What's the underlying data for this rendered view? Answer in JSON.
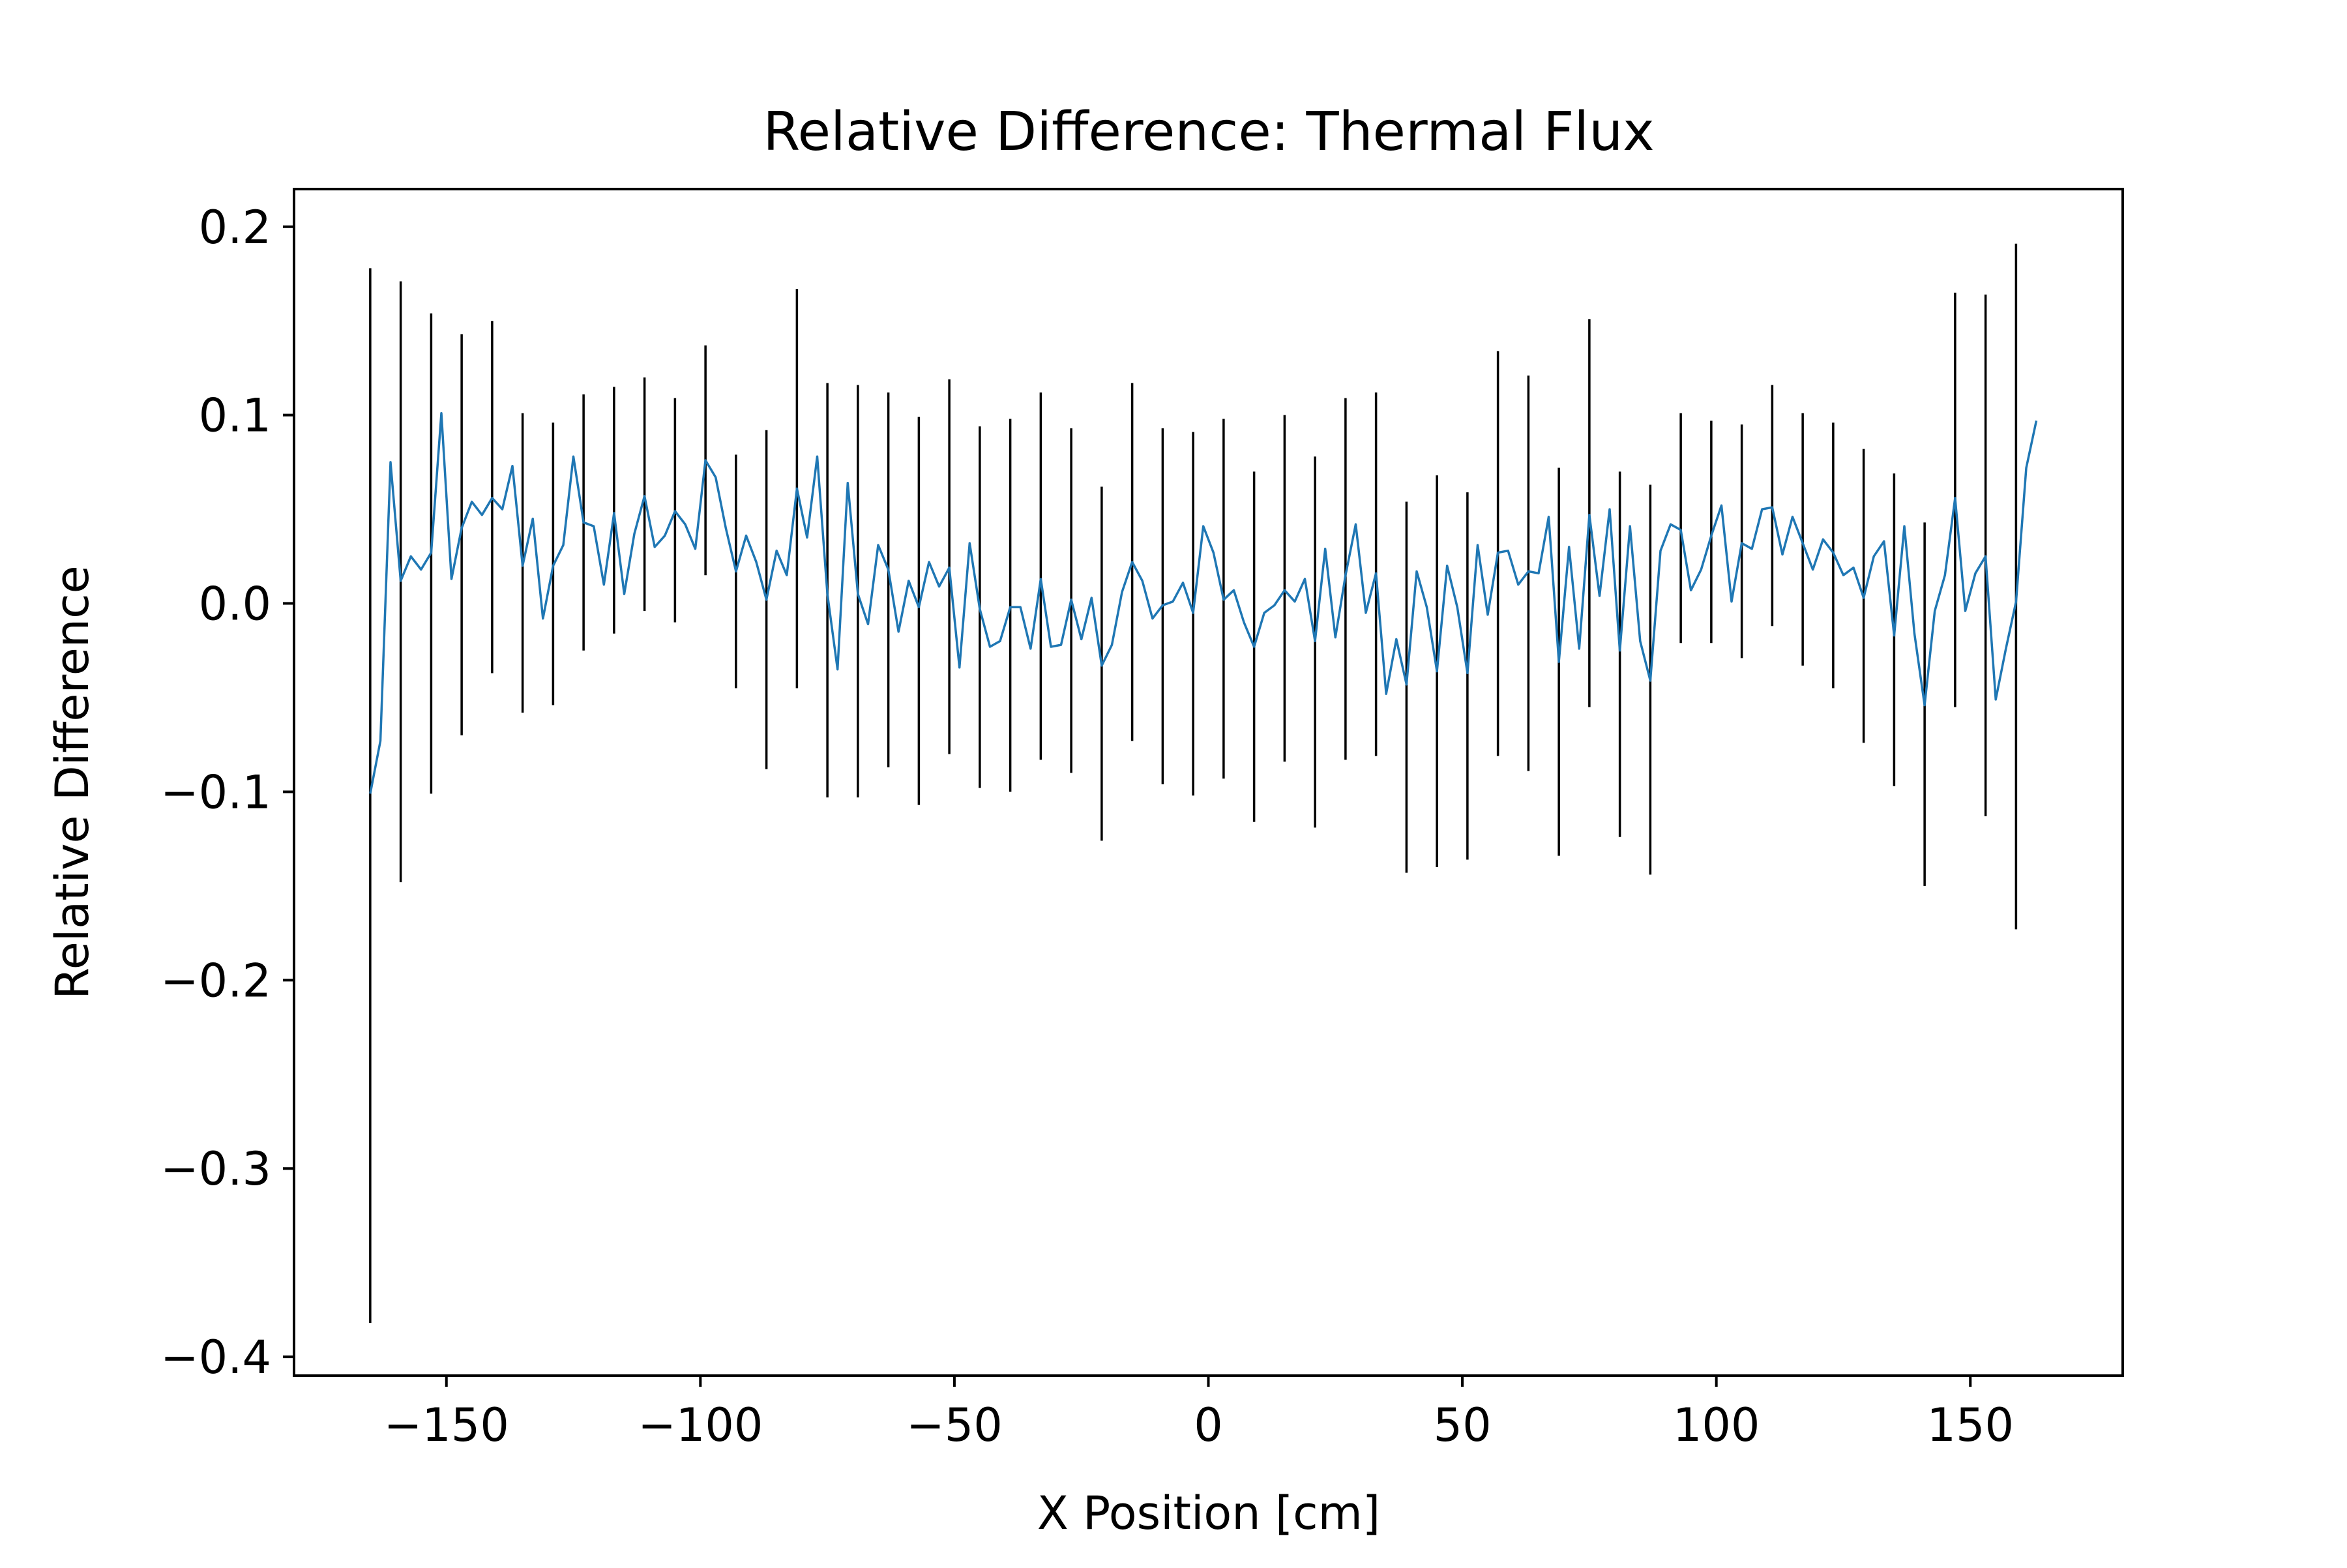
{
  "chart_data": {
    "type": "line",
    "title": "Relative Difference: Thermal Flux",
    "xlabel": "X Position [cm]",
    "ylabel": "Relative Difference",
    "xlim": [
      -180,
      180
    ],
    "ylim": [
      -0.41,
      0.22
    ],
    "xticks": [
      -150,
      -100,
      -50,
      0,
      50,
      100,
      150
    ],
    "xtick_labels": [
      "−150",
      "−100",
      "−50",
      "0",
      "50",
      "100",
      "150"
    ],
    "yticks": [
      0.2,
      0.1,
      0.0,
      -0.1,
      -0.2,
      -0.3,
      -0.4
    ],
    "ytick_labels": [
      "0.2",
      "0.1",
      "0.0",
      "−0.1",
      "−0.2",
      "−0.3",
      "−0.4"
    ],
    "grid": false,
    "line_color": "#1f77b4",
    "errorbar_color": "#000000",
    "series": [
      {
        "x": [
          -165,
          -163,
          -161,
          -159,
          -157,
          -155,
          -153,
          -151,
          -149,
          -147,
          -145,
          -143,
          -141,
          -139,
          -137,
          -135,
          -133,
          -131,
          -129,
          -127,
          -125,
          -123,
          -121,
          -119,
          -117,
          -115,
          -113,
          -111,
          -109,
          -107,
          -105,
          -103,
          -101,
          -99,
          -97,
          -95,
          -93,
          -91,
          -89,
          -87,
          -85,
          -83,
          -81,
          -79,
          -77,
          -75,
          -73,
          -71,
          -69,
          -67,
          -65,
          -63,
          -61,
          -59,
          -57,
          -55,
          -53,
          -51,
          -49,
          -47,
          -45,
          -43,
          -41,
          -39,
          -37,
          -35,
          -33,
          -31,
          -29,
          -27,
          -25,
          -23,
          -21,
          -19,
          -17,
          -15,
          -13,
          -11,
          -9,
          -7,
          -5,
          -3,
          -1,
          1,
          3,
          5,
          7,
          9,
          11,
          13,
          15,
          17,
          19,
          21,
          23,
          25,
          27,
          29,
          31,
          33,
          35,
          37,
          39,
          41,
          43,
          45,
          47,
          49,
          51,
          53,
          55,
          57,
          59,
          61,
          63,
          65,
          67,
          69,
          71,
          73,
          75,
          77,
          79,
          81,
          83,
          85,
          87,
          89,
          91,
          93,
          95,
          97,
          99,
          101,
          103,
          105,
          107,
          109,
          111,
          113,
          115,
          117,
          119,
          121,
          123,
          125,
          127,
          129,
          131,
          133,
          135,
          137,
          139,
          141,
          143,
          145,
          147,
          149,
          151,
          153,
          155,
          157,
          159,
          161,
          163
        ],
        "values": [
          -0.101,
          -0.073,
          0.075,
          0.012,
          0.025,
          0.018,
          0.027,
          0.101,
          0.013,
          0.04,
          0.054,
          0.047,
          0.056,
          0.05,
          0.073,
          0.02,
          0.045,
          -0.008,
          0.02,
          0.031,
          0.078,
          0.043,
          0.041,
          0.01,
          0.048,
          0.005,
          0.037,
          0.057,
          0.03,
          0.036,
          0.049,
          0.042,
          0.029,
          0.076,
          0.067,
          0.04,
          0.017,
          0.036,
          0.022,
          0.002,
          0.028,
          0.015,
          0.061,
          0.035,
          0.078,
          0.005,
          -0.035,
          0.064,
          0.005,
          -0.011,
          0.031,
          0.018,
          -0.015,
          0.012,
          -0.002,
          0.022,
          0.009,
          0.019,
          -0.034,
          0.032,
          -0.003,
          -0.023,
          -0.02,
          -0.002,
          -0.002,
          -0.024,
          0.013,
          -0.023,
          -0.022,
          0.002,
          -0.019,
          0.003,
          -0.033,
          -0.022,
          0.006,
          0.022,
          0.012,
          -0.008,
          -0.001,
          0.001,
          0.011,
          -0.005,
          0.041,
          0.027,
          0.002,
          0.007,
          -0.01,
          -0.023,
          -0.005,
          -0.001,
          0.007,
          0.001,
          0.013,
          -0.02,
          0.029,
          -0.018,
          0.015,
          0.042,
          -0.005,
          0.016,
          -0.048,
          -0.019,
          -0.043,
          0.017,
          -0.002,
          -0.036,
          0.02,
          -0.002,
          -0.037,
          0.031,
          -0.006,
          0.027,
          0.028,
          0.01,
          0.017,
          0.016,
          0.046,
          -0.031,
          0.03,
          -0.024,
          0.047,
          0.004,
          0.05,
          -0.025,
          0.041,
          -0.02,
          -0.041,
          0.028,
          0.042,
          0.039,
          0.007,
          0.018,
          0.036,
          0.052,
          0.001,
          0.032,
          0.029,
          0.05,
          0.051,
          0.026,
          0.046,
          0.032,
          0.018,
          0.034,
          0.027,
          0.015,
          0.019,
          0.003,
          0.025,
          0.033,
          -0.017,
          0.041,
          -0.016,
          -0.054,
          -0.004,
          0.015,
          0.056,
          -0.004,
          0.016,
          0.025,
          -0.051,
          -0.024,
          0.001,
          0.072,
          0.097
        ]
      }
    ],
    "error_bars": [
      {
        "x": -165,
        "low": -0.382,
        "high": 0.178
      },
      {
        "x": -159,
        "low": -0.148,
        "high": 0.171
      },
      {
        "x": -153,
        "low": -0.101,
        "high": 0.154
      },
      {
        "x": -147,
        "low": -0.07,
        "high": 0.143
      },
      {
        "x": -141,
        "low": -0.037,
        "high": 0.15
      },
      {
        "x": -135,
        "low": -0.058,
        "high": 0.101
      },
      {
        "x": -129,
        "low": -0.054,
        "high": 0.096
      },
      {
        "x": -123,
        "low": -0.025,
        "high": 0.111
      },
      {
        "x": -117,
        "low": -0.016,
        "high": 0.115
      },
      {
        "x": -111,
        "low": -0.004,
        "high": 0.12
      },
      {
        "x": -105,
        "low": -0.01,
        "high": 0.109
      },
      {
        "x": -99,
        "low": 0.015,
        "high": 0.137
      },
      {
        "x": -93,
        "low": -0.045,
        "high": 0.079
      },
      {
        "x": -87,
        "low": -0.088,
        "high": 0.092
      },
      {
        "x": -81,
        "low": -0.045,
        "high": 0.167
      },
      {
        "x": -75,
        "low": -0.103,
        "high": 0.117
      },
      {
        "x": -69,
        "low": -0.103,
        "high": 0.116
      },
      {
        "x": -63,
        "low": -0.087,
        "high": 0.112
      },
      {
        "x": -57,
        "low": -0.107,
        "high": 0.099
      },
      {
        "x": -51,
        "low": -0.08,
        "high": 0.119
      },
      {
        "x": -45,
        "low": -0.098,
        "high": 0.094
      },
      {
        "x": -39,
        "low": -0.1,
        "high": 0.098
      },
      {
        "x": -33,
        "low": -0.083,
        "high": 0.112
      },
      {
        "x": -27,
        "low": -0.09,
        "high": 0.093
      },
      {
        "x": -21,
        "low": -0.126,
        "high": 0.062
      },
      {
        "x": -15,
        "low": -0.073,
        "high": 0.117
      },
      {
        "x": -9,
        "low": -0.096,
        "high": 0.093
      },
      {
        "x": -3,
        "low": -0.102,
        "high": 0.091
      },
      {
        "x": 3,
        "low": -0.093,
        "high": 0.098
      },
      {
        "x": 9,
        "low": -0.116,
        "high": 0.07
      },
      {
        "x": 15,
        "low": -0.084,
        "high": 0.1
      },
      {
        "x": 21,
        "low": -0.119,
        "high": 0.078
      },
      {
        "x": 27,
        "low": -0.083,
        "high": 0.109
      },
      {
        "x": 33,
        "low": -0.081,
        "high": 0.112
      },
      {
        "x": 39,
        "low": -0.143,
        "high": 0.054
      },
      {
        "x": 45,
        "low": -0.14,
        "high": 0.068
      },
      {
        "x": 51,
        "low": -0.136,
        "high": 0.059
      },
      {
        "x": 57,
        "low": -0.081,
        "high": 0.134
      },
      {
        "x": 63,
        "low": -0.089,
        "high": 0.121
      },
      {
        "x": 69,
        "low": -0.134,
        "high": 0.072
      },
      {
        "x": 75,
        "low": -0.055,
        "high": 0.151
      },
      {
        "x": 81,
        "low": -0.124,
        "high": 0.07
      },
      {
        "x": 87,
        "low": -0.144,
        "high": 0.063
      },
      {
        "x": 93,
        "low": -0.021,
        "high": 0.101
      },
      {
        "x": 99,
        "low": -0.021,
        "high": 0.097
      },
      {
        "x": 105,
        "low": -0.029,
        "high": 0.095
      },
      {
        "x": 111,
        "low": -0.012,
        "high": 0.116
      },
      {
        "x": 117,
        "low": -0.033,
        "high": 0.101
      },
      {
        "x": 123,
        "low": -0.045,
        "high": 0.096
      },
      {
        "x": 129,
        "low": -0.074,
        "high": 0.082
      },
      {
        "x": 135,
        "low": -0.097,
        "high": 0.069
      },
      {
        "x": 141,
        "low": -0.15,
        "high": 0.043
      },
      {
        "x": 147,
        "low": -0.055,
        "high": 0.165
      },
      {
        "x": 153,
        "low": -0.113,
        "high": 0.164
      },
      {
        "x": 159,
        "low": -0.173,
        "high": 0.191
      }
    ]
  }
}
